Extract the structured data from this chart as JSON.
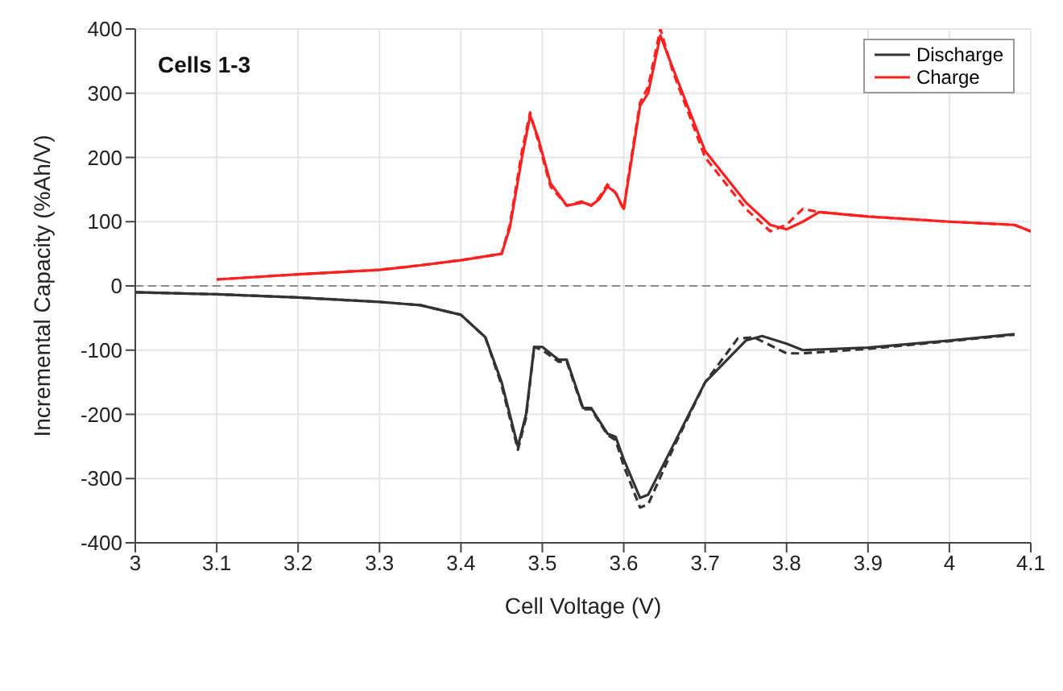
{
  "chart_data": {
    "type": "line",
    "xlabel": "Cell Voltage (V)",
    "ylabel": "Incremental Capacity (%Ah/V)",
    "annotations": [
      "Cells 1-3"
    ],
    "xlim": [
      3,
      4.1
    ],
    "xticks": [
      3,
      3.1,
      3.2,
      3.3,
      3.4,
      3.5,
      3.6,
      3.7,
      3.8,
      3.9,
      4,
      4.1
    ],
    "ylim": [
      -400,
      400
    ],
    "yticks": [
      -400,
      -300,
      -200,
      -100,
      0,
      100,
      200,
      300,
      400
    ],
    "grid": true,
    "legend": "top right",
    "marker": "none",
    "ref_lines": [
      {
        "axis": "y",
        "value": 0,
        "color": "#8c8c8c",
        "line_style": "dashed"
      }
    ],
    "series": [
      {
        "name": "Discharge",
        "color": "#333333",
        "line_style": "solid",
        "x": [
          3.0,
          3.1,
          3.2,
          3.3,
          3.35,
          3.4,
          3.43,
          3.45,
          3.47,
          3.48,
          3.49,
          3.5,
          3.52,
          3.53,
          3.55,
          3.56,
          3.58,
          3.59,
          3.6,
          3.62,
          3.63,
          3.66,
          3.7,
          3.75,
          3.77,
          3.8,
          3.82,
          3.9,
          4.0,
          4.08
        ],
        "values": [
          -10,
          -13,
          -18,
          -25,
          -30,
          -45,
          -80,
          -150,
          -250,
          -200,
          -95,
          -95,
          -115,
          -115,
          -190,
          -190,
          -230,
          -235,
          -270,
          -330,
          -325,
          -250,
          -150,
          -85,
          -78,
          -90,
          -100,
          -96,
          -85,
          -75
        ]
      },
      {
        "color": "#333333",
        "line_style": "dashed",
        "x": [
          3.0,
          3.1,
          3.2,
          3.3,
          3.35,
          3.4,
          3.43,
          3.45,
          3.47,
          3.48,
          3.49,
          3.5,
          3.52,
          3.53,
          3.55,
          3.56,
          3.58,
          3.59,
          3.6,
          3.62,
          3.63,
          3.66,
          3.7,
          3.74,
          3.76,
          3.8,
          3.82,
          3.9,
          4.0,
          4.08
        ],
        "values": [
          -10,
          -13,
          -18,
          -25,
          -30,
          -45,
          -80,
          -155,
          -255,
          -205,
          -95,
          -100,
          -118,
          -118,
          -192,
          -192,
          -232,
          -240,
          -280,
          -345,
          -340,
          -255,
          -150,
          -82,
          -80,
          -105,
          -105,
          -98,
          -86,
          -76
        ]
      },
      {
        "name": "Charge",
        "color": "#ff2020",
        "line_style": "solid",
        "x": [
          3.1,
          3.2,
          3.3,
          3.35,
          3.4,
          3.45,
          3.46,
          3.475,
          3.485,
          3.495,
          3.51,
          3.53,
          3.55,
          3.56,
          3.57,
          3.58,
          3.59,
          3.6,
          3.605,
          3.62,
          3.63,
          3.64,
          3.645,
          3.66,
          3.7,
          3.75,
          3.78,
          3.8,
          3.82,
          3.84,
          3.9,
          4.0,
          4.08,
          4.1
        ],
        "values": [
          10,
          18,
          25,
          32,
          40,
          50,
          90,
          200,
          265,
          230,
          160,
          125,
          130,
          125,
          135,
          155,
          145,
          120,
          160,
          280,
          300,
          360,
          390,
          340,
          210,
          130,
          95,
          88,
          100,
          115,
          108,
          100,
          95,
          85
        ]
      },
      {
        "color": "#ff2020",
        "line_style": "dashed",
        "x": [
          3.1,
          3.2,
          3.3,
          3.35,
          3.4,
          3.45,
          3.46,
          3.475,
          3.485,
          3.495,
          3.51,
          3.53,
          3.55,
          3.56,
          3.57,
          3.58,
          3.59,
          3.6,
          3.605,
          3.62,
          3.63,
          3.64,
          3.645,
          3.66,
          3.7,
          3.75,
          3.78,
          3.8,
          3.82,
          3.84,
          3.9,
          4.0,
          4.08,
          4.1
        ],
        "values": [
          10,
          18,
          25,
          32,
          40,
          50,
          95,
          210,
          270,
          225,
          155,
          125,
          132,
          125,
          138,
          158,
          145,
          118,
          165,
          285,
          310,
          370,
          400,
          335,
          200,
          120,
          85,
          95,
          120,
          115,
          108,
          100,
          95,
          85
        ]
      }
    ]
  }
}
